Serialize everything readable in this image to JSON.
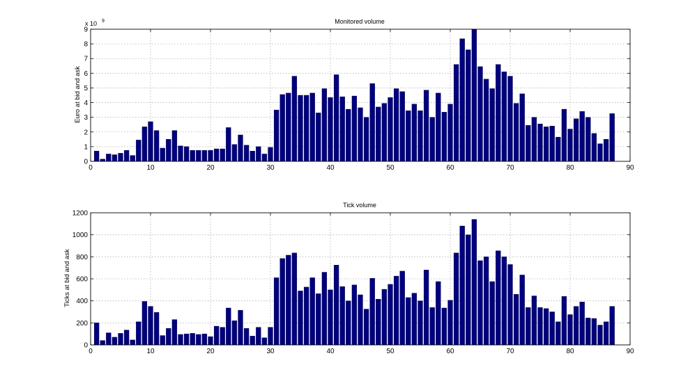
{
  "chart_data": [
    {
      "type": "bar",
      "title": "Monitored volume",
      "xlabel": "",
      "ylabel": "Euro at bid and ask",
      "y_exponent_base": "x 10",
      "y_exponent_power": "9",
      "xlim": [
        0,
        90
      ],
      "ylim": [
        0,
        9
      ],
      "xticks": [
        0,
        10,
        20,
        30,
        40,
        50,
        60,
        70,
        80,
        90
      ],
      "yticks": [
        0,
        1,
        2,
        3,
        4,
        5,
        6,
        7,
        8,
        9
      ],
      "grid": true,
      "bar_color": "#00007f",
      "x": [
        1,
        2,
        3,
        4,
        5,
        6,
        7,
        8,
        9,
        10,
        11,
        12,
        13,
        14,
        15,
        16,
        17,
        18,
        19,
        20,
        21,
        22,
        23,
        24,
        25,
        26,
        27,
        28,
        29,
        30,
        31,
        32,
        33,
        34,
        35,
        36,
        37,
        38,
        39,
        40,
        41,
        42,
        43,
        44,
        45,
        46,
        47,
        48,
        49,
        50,
        51,
        52,
        53,
        54,
        55,
        56,
        57,
        58,
        59,
        60,
        61,
        62,
        63,
        64,
        65,
        66,
        67,
        68,
        69,
        70,
        71,
        72,
        73,
        74,
        75,
        76,
        77,
        78,
        79,
        80,
        81,
        82,
        83,
        84,
        85,
        86,
        87
      ],
      "values": [
        0.7,
        0.15,
        0.5,
        0.45,
        0.55,
        0.75,
        0.4,
        1.45,
        2.35,
        2.7,
        2.1,
        0.9,
        1.5,
        2.1,
        1.05,
        1.0,
        0.75,
        0.75,
        0.75,
        0.75,
        0.85,
        0.85,
        2.3,
        1.15,
        1.8,
        1.1,
        0.7,
        1.0,
        0.5,
        0.95,
        3.5,
        4.55,
        4.65,
        5.8,
        4.5,
        4.5,
        4.65,
        3.3,
        4.95,
        4.35,
        5.9,
        4.4,
        3.55,
        4.45,
        3.65,
        3.0,
        5.3,
        3.7,
        3.95,
        4.35,
        4.95,
        4.75,
        3.45,
        3.9,
        3.45,
        4.85,
        3.0,
        4.65,
        3.35,
        3.9,
        6.6,
        8.35,
        7.6,
        9.0,
        6.45,
        5.6,
        4.95,
        6.6,
        6.1,
        5.8,
        3.95,
        4.6,
        2.45,
        3.0,
        2.55,
        2.35,
        2.4,
        1.65,
        3.55,
        2.2,
        2.9,
        3.4,
        3.0,
        1.9,
        1.2,
        1.5,
        3.25
      ]
    },
    {
      "type": "bar",
      "title": "Tick volume",
      "xlabel": "",
      "ylabel": "Ticks at bid and ask",
      "xlim": [
        0,
        90
      ],
      "ylim": [
        0,
        1200
      ],
      "xticks": [
        0,
        10,
        20,
        30,
        40,
        50,
        60,
        70,
        80,
        90
      ],
      "yticks": [
        0,
        200,
        400,
        600,
        800,
        1000,
        1200
      ],
      "grid": true,
      "bar_color": "#00007f",
      "x": [
        1,
        2,
        3,
        4,
        5,
        6,
        7,
        8,
        9,
        10,
        11,
        12,
        13,
        14,
        15,
        16,
        17,
        18,
        19,
        20,
        21,
        22,
        23,
        24,
        25,
        26,
        27,
        28,
        29,
        30,
        31,
        32,
        33,
        34,
        35,
        36,
        37,
        38,
        39,
        40,
        41,
        42,
        43,
        44,
        45,
        46,
        47,
        48,
        49,
        50,
        51,
        52,
        53,
        54,
        55,
        56,
        57,
        58,
        59,
        60,
        61,
        62,
        63,
        64,
        65,
        66,
        67,
        68,
        69,
        70,
        71,
        72,
        73,
        74,
        75,
        76,
        77,
        78,
        79,
        80,
        81,
        82,
        83,
        84,
        85,
        86,
        87
      ],
      "values": [
        200,
        40,
        110,
        70,
        105,
        135,
        45,
        210,
        395,
        350,
        295,
        85,
        150,
        230,
        95,
        100,
        105,
        95,
        100,
        75,
        170,
        160,
        335,
        220,
        315,
        150,
        80,
        160,
        65,
        160,
        610,
        785,
        815,
        835,
        490,
        525,
        610,
        465,
        660,
        500,
        725,
        530,
        400,
        545,
        455,
        325,
        605,
        415,
        505,
        550,
        625,
        670,
        430,
        470,
        400,
        680,
        340,
        575,
        335,
        405,
        835,
        1080,
        1000,
        1140,
        765,
        800,
        575,
        855,
        800,
        730,
        460,
        635,
        340,
        445,
        340,
        330,
        300,
        210,
        440,
        275,
        350,
        390,
        245,
        240,
        180,
        210,
        350
      ]
    }
  ]
}
